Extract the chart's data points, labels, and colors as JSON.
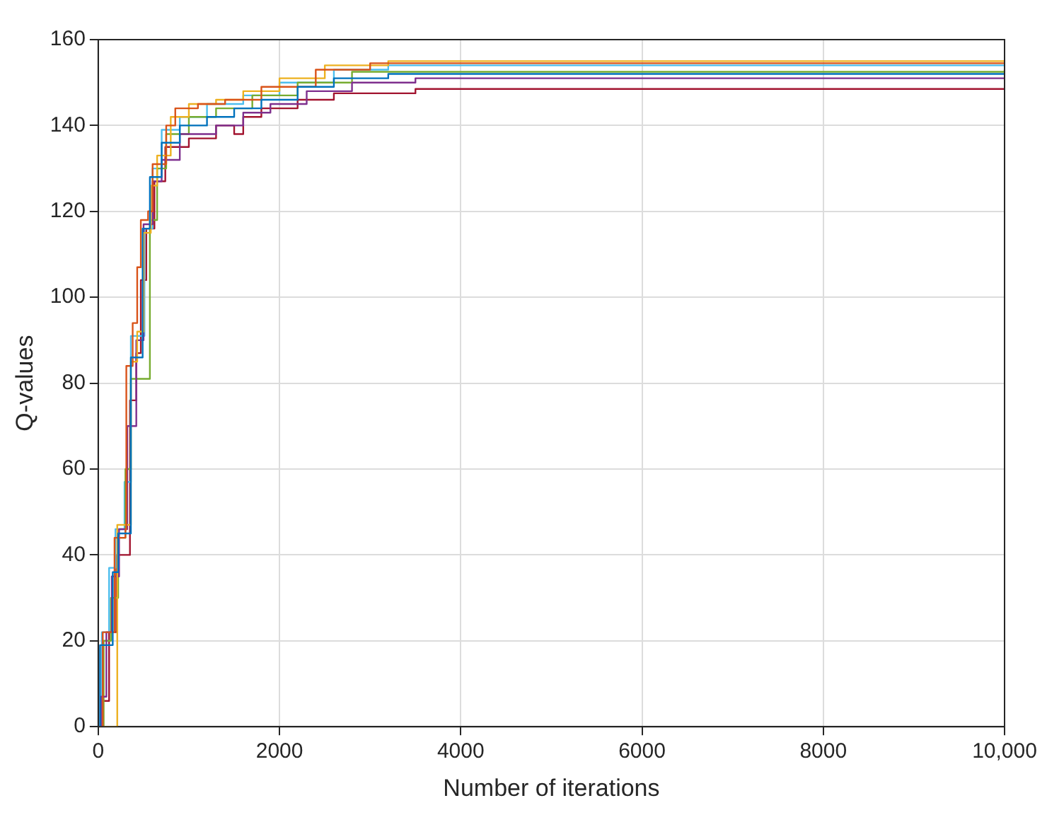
{
  "chart_data": {
    "type": "step",
    "xlabel": "Number of iterations",
    "ylabel": "Q-values",
    "xlim": [
      0,
      10000
    ],
    "ylim": [
      0,
      160
    ],
    "xticks": [
      0,
      2000,
      4000,
      6000,
      8000,
      {
        "value": 10000,
        "label": "10,000"
      }
    ],
    "yticks": [
      0,
      20,
      40,
      60,
      80,
      100,
      120,
      140,
      160
    ],
    "grid": true,
    "legend": false,
    "series": [
      {
        "color": "#0072bd",
        "x": [
          0,
          20,
          150,
          160,
          220,
          350,
          360,
          480,
          490,
          560,
          570,
          700,
          900,
          1200,
          1500,
          1800,
          2200,
          2600,
          3200,
          10000
        ],
        "values": [
          0,
          19,
          19,
          36,
          45,
          45,
          86,
          86,
          116,
          116,
          128,
          136,
          140,
          142,
          144,
          146,
          149,
          151,
          152,
          152
        ]
      },
      {
        "color": "#d95319",
        "x": [
          0,
          40,
          50,
          180,
          300,
          310,
          380,
          430,
          470,
          550,
          600,
          750,
          850,
          1100,
          1400,
          1800,
          2400,
          3000,
          10000
        ],
        "values": [
          0,
          0,
          22,
          44,
          46,
          84,
          94,
          107,
          118,
          120,
          131,
          140,
          144,
          145,
          146,
          149,
          153,
          154.5,
          154.5
        ]
      },
      {
        "color": "#edb120",
        "x": [
          0,
          200,
          210,
          350,
          360,
          430,
          500,
          580,
          650,
          800,
          1000,
          1300,
          1600,
          2000,
          2500,
          3200,
          10000
        ],
        "values": [
          0,
          0,
          47,
          47,
          85,
          92,
          115,
          126,
          133,
          142,
          145,
          146,
          148,
          151,
          154,
          155,
          155
        ]
      },
      {
        "color": "#7e2f8e",
        "x": [
          0,
          30,
          90,
          150,
          230,
          320,
          420,
          500,
          600,
          700,
          900,
          1300,
          1600,
          1900,
          2300,
          2800,
          3500,
          10000
        ],
        "values": [
          0,
          7,
          22,
          35,
          46,
          70,
          90,
          117,
          127,
          132,
          138,
          140,
          143,
          145,
          148,
          150,
          151,
          151
        ]
      },
      {
        "color": "#77ac30",
        "x": [
          0,
          60,
          140,
          220,
          300,
          360,
          560,
          570,
          650,
          750,
          1000,
          1300,
          1700,
          2200,
          2800,
          10000
        ],
        "values": [
          0,
          20,
          30,
          44,
          60,
          81,
          81,
          118,
          130,
          138,
          142,
          144,
          147,
          150,
          152.5,
          153
        ]
      },
      {
        "color": "#4dbeee",
        "x": [
          0,
          40,
          120,
          190,
          290,
          360,
          500,
          510,
          600,
          700,
          900,
          1200,
          1600,
          2000,
          2600,
          3200,
          10000
        ],
        "values": [
          0,
          22,
          37,
          46,
          57,
          91,
          91,
          116,
          130,
          139,
          142,
          145,
          147,
          150,
          153,
          154,
          154
        ]
      },
      {
        "color": "#a2142f",
        "x": [
          0,
          30,
          120,
          200,
          300,
          350,
          420,
          470,
          530,
          600,
          620,
          740,
          1000,
          1300,
          1500,
          1600,
          1800,
          2200,
          2600,
          3500,
          10000
        ],
        "values": [
          0,
          6,
          22,
          40,
          40,
          76,
          87,
          104,
          116,
          116,
          127,
          135,
          137,
          140,
          138,
          142,
          144,
          146,
          147.5,
          148.5,
          148.5
        ]
      }
    ]
  }
}
